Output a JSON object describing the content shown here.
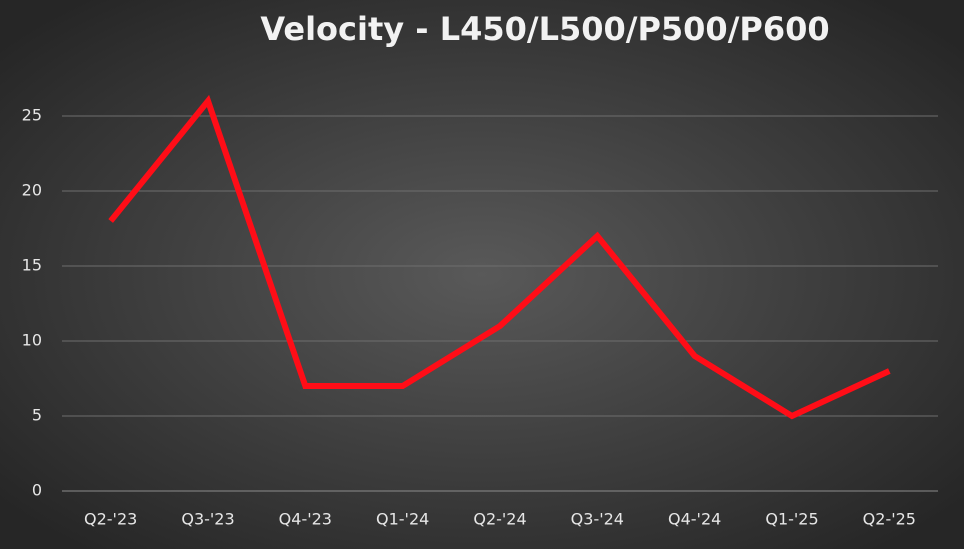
{
  "chart_data": {
    "type": "line",
    "title": "Velocity - L450/L500/P500/P600",
    "categories": [
      "Q2-'23",
      "Q3-'23",
      "Q4-'23",
      "Q1-'24",
      "Q2-'24",
      "Q3-'24",
      "Q4-'24",
      "Q1-'25",
      "Q2-'25"
    ],
    "values": [
      18,
      26,
      7,
      7,
      11,
      17,
      9,
      5,
      8
    ],
    "color": "#ff0d17",
    "ylim": [
      0,
      30
    ],
    "yticks": [
      0,
      5,
      10,
      15,
      20,
      25
    ],
    "grid": true
  }
}
